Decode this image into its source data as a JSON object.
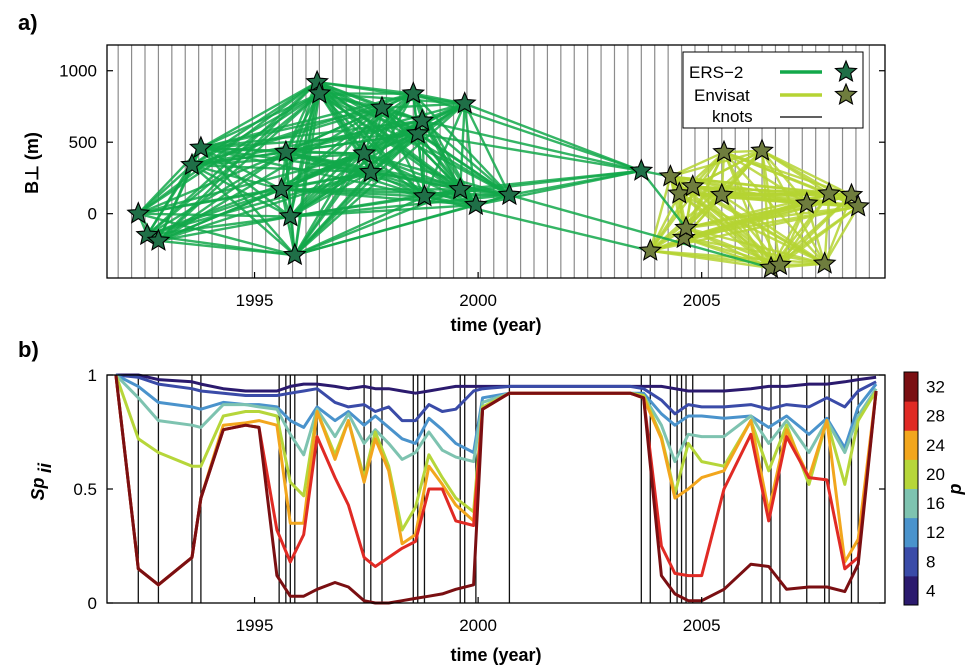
{
  "colors": {
    "ers2": "#12a84a",
    "envisat": "#b5d433",
    "star_ers2": "#1f6f47",
    "star_envisat": "#6f7d3e",
    "grid": "#8c8c8c"
  },
  "chart_data": [
    {
      "panel_label": "a)",
      "type": "scatter",
      "xlabel": "time (year)",
      "ylabel": "B⊥ (m)",
      "xlim": [
        1991.7,
        2009.1
      ],
      "ylim": [
        -450,
        1180
      ],
      "xticks": [
        1995,
        2000,
        2005
      ],
      "yticks": [
        0,
        500,
        1000
      ],
      "legend": {
        "position": "top-right",
        "entries": [
          "ERS−2",
          "Envisat",
          "knots"
        ]
      },
      "knots": [
        1991.95,
        1992.25,
        1992.55,
        1992.85,
        1993.15,
        1993.45,
        1993.75,
        1994.05,
        1994.35,
        1994.65,
        1994.95,
        1995.25,
        1995.55,
        1995.85,
        1996.15,
        1996.45,
        1996.75,
        1997.05,
        1997.35,
        1997.65,
        1997.95,
        1998.25,
        1998.55,
        1998.85,
        1999.15,
        1999.45,
        1999.75,
        2000.05,
        2000.35,
        2000.65,
        2000.95,
        2001.25,
        2001.55,
        2001.85,
        2002.15,
        2002.45,
        2002.75,
        2003.05,
        2003.35,
        2003.65,
        2003.95,
        2004.25,
        2004.55,
        2004.85,
        2005.15,
        2005.45,
        2005.75,
        2006.05,
        2006.35,
        2006.65,
        2006.95,
        2007.25,
        2007.55,
        2007.85,
        2008.15,
        2008.45,
        2008.75
      ],
      "series": [
        {
          "name": "ERS−2",
          "points": [
            [
              1992.4,
              0
            ],
            [
              1992.6,
              -150
            ],
            [
              1992.85,
              -190
            ],
            [
              1993.6,
              340
            ],
            [
              1993.8,
              460
            ],
            [
              1995.6,
              170
            ],
            [
              1995.7,
              430
            ],
            [
              1995.8,
              -20
            ],
            [
              1995.9,
              -290
            ],
            [
              1996.4,
              920
            ],
            [
              1996.45,
              840
            ],
            [
              1997.45,
              420
            ],
            [
              1997.6,
              290
            ],
            [
              1997.85,
              740
            ],
            [
              1998.55,
              840
            ],
            [
              1998.65,
              560
            ],
            [
              1998.75,
              650
            ],
            [
              1998.8,
              120
            ],
            [
              1999.6,
              170
            ],
            [
              1999.7,
              770
            ],
            [
              1999.95,
              60
            ],
            [
              2000.7,
              130
            ],
            [
              2003.65,
              300
            ]
          ]
        },
        {
          "name": "Envisat",
          "points": [
            [
              2003.85,
              -260
            ],
            [
              2004.3,
              260
            ],
            [
              2004.5,
              140
            ],
            [
              2004.6,
              -170
            ],
            [
              2004.65,
              -100
            ],
            [
              2004.8,
              190
            ],
            [
              2005.45,
              130
            ],
            [
              2005.5,
              430
            ],
            [
              2006.35,
              440
            ],
            [
              2006.55,
              -380
            ],
            [
              2006.75,
              -360
            ],
            [
              2007.35,
              70
            ],
            [
              2007.75,
              -350
            ],
            [
              2007.85,
              140
            ],
            [
              2008.35,
              130
            ],
            [
              2008.5,
              50
            ]
          ]
        }
      ]
    },
    {
      "panel_label": "b)",
      "type": "line",
      "xlabel": "time (year)",
      "ylabel": "Sp",
      "xlim": [
        1991.7,
        2009.1
      ],
      "ylim": [
        0,
        1
      ],
      "xticks": [
        1995,
        2000,
        2005
      ],
      "yticks": [
        0,
        0.5,
        1
      ],
      "ytick_labels": [
        "0",
        "0.5",
        "1"
      ],
      "colorbar": {
        "label": "p",
        "ticks": [
          4,
          8,
          12,
          16,
          20,
          24,
          28,
          32
        ],
        "colors": [
          "#2b1a6e",
          "#3a4ba8",
          "#4a93cc",
          "#7ec3b0",
          "#b6d63a",
          "#f2a61d",
          "#e02a24",
          "#7a0f12"
        ]
      },
      "knots": [
        1992.4,
        1992.85,
        1993.6,
        1993.8,
        1995.55,
        1995.7,
        1995.8,
        1995.9,
        1996.4,
        1997.45,
        1997.6,
        1997.85,
        1998.55,
        1998.65,
        1998.8,
        1999.6,
        1999.7,
        1999.95,
        2000.7,
        2003.65,
        2003.85,
        2004.3,
        2004.45,
        2004.55,
        2004.65,
        2004.8,
        2005.5,
        2006.35,
        2006.55,
        2006.75,
        2007.35,
        2007.75,
        2007.85,
        2008.35,
        2008.5
      ],
      "x": [
        1991.9,
        1992.4,
        1992.85,
        1993.6,
        1993.8,
        1994.3,
        1994.8,
        1995.1,
        1995.5,
        1995.8,
        1996.1,
        1996.4,
        1996.8,
        1997.1,
        1997.45,
        1997.7,
        1998.0,
        1998.3,
        1998.6,
        1998.9,
        1999.2,
        1999.5,
        1999.9,
        2000.1,
        2000.7,
        2001.2,
        2002.5,
        2003.4,
        2003.7,
        2004.1,
        2004.4,
        2004.7,
        2005.0,
        2005.5,
        2006.1,
        2006.5,
        2006.9,
        2007.4,
        2007.8,
        2008.2,
        2008.5,
        2008.9
      ],
      "series": [
        {
          "name": "4",
          "color": "#2b1a6e",
          "values": [
            1.0,
            1.0,
            0.98,
            0.97,
            0.96,
            0.94,
            0.93,
            0.93,
            0.93,
            0.95,
            0.96,
            0.96,
            0.95,
            0.94,
            0.95,
            0.94,
            0.94,
            0.93,
            0.92,
            0.93,
            0.94,
            0.95,
            0.95,
            0.95,
            0.95,
            0.95,
            0.95,
            0.95,
            0.95,
            0.95,
            0.94,
            0.93,
            0.93,
            0.93,
            0.94,
            0.95,
            0.95,
            0.96,
            0.96,
            0.97,
            0.98,
            0.99
          ]
        },
        {
          "name": "8",
          "color": "#3a4ba8",
          "values": [
            1.0,
            0.99,
            0.96,
            0.94,
            0.93,
            0.92,
            0.91,
            0.91,
            0.91,
            0.92,
            0.93,
            0.94,
            0.88,
            0.86,
            0.87,
            0.84,
            0.86,
            0.8,
            0.8,
            0.87,
            0.84,
            0.85,
            0.93,
            0.94,
            0.95,
            0.95,
            0.95,
            0.95,
            0.94,
            0.89,
            0.83,
            0.87,
            0.86,
            0.86,
            0.87,
            0.85,
            0.87,
            0.86,
            0.9,
            0.86,
            0.93,
            0.97
          ]
        },
        {
          "name": "12",
          "color": "#4a93cc",
          "values": [
            1.0,
            0.95,
            0.88,
            0.86,
            0.85,
            0.88,
            0.87,
            0.87,
            0.86,
            0.8,
            0.77,
            0.86,
            0.8,
            0.84,
            0.78,
            0.82,
            0.77,
            0.72,
            0.7,
            0.81,
            0.76,
            0.7,
            0.66,
            0.9,
            0.92,
            0.92,
            0.92,
            0.92,
            0.92,
            0.83,
            0.78,
            0.82,
            0.82,
            0.81,
            0.82,
            0.77,
            0.82,
            0.74,
            0.81,
            0.68,
            0.86,
            0.96
          ]
        },
        {
          "name": "16",
          "color": "#7ec3b0",
          "values": [
            1.0,
            0.9,
            0.8,
            0.78,
            0.77,
            0.87,
            0.87,
            0.86,
            0.85,
            0.74,
            0.65,
            0.85,
            0.73,
            0.83,
            0.7,
            0.76,
            0.7,
            0.63,
            0.66,
            0.75,
            0.67,
            0.64,
            0.62,
            0.88,
            0.92,
            0.92,
            0.92,
            0.92,
            0.91,
            0.78,
            0.62,
            0.74,
            0.73,
            0.73,
            0.82,
            0.7,
            0.8,
            0.66,
            0.8,
            0.66,
            0.82,
            0.94
          ]
        },
        {
          "name": "20",
          "color": "#b6d63a",
          "values": [
            1.0,
            0.72,
            0.66,
            0.6,
            0.6,
            0.82,
            0.84,
            0.84,
            0.82,
            0.53,
            0.47,
            0.84,
            0.65,
            0.8,
            0.55,
            0.75,
            0.6,
            0.32,
            0.42,
            0.65,
            0.55,
            0.46,
            0.4,
            0.86,
            0.92,
            0.92,
            0.92,
            0.92,
            0.91,
            0.73,
            0.48,
            0.7,
            0.62,
            0.6,
            0.8,
            0.58,
            0.78,
            0.52,
            0.8,
            0.52,
            0.8,
            0.93
          ]
        },
        {
          "name": "24",
          "color": "#f2a61d",
          "values": [
            1.0,
            0.15,
            0.08,
            0.2,
            0.46,
            0.78,
            0.79,
            0.8,
            0.78,
            0.35,
            0.35,
            0.84,
            0.63,
            0.8,
            0.53,
            0.72,
            0.58,
            0.26,
            0.3,
            0.6,
            0.52,
            0.43,
            0.36,
            0.85,
            0.92,
            0.92,
            0.92,
            0.92,
            0.9,
            0.72,
            0.46,
            0.5,
            0.55,
            0.58,
            0.8,
            0.4,
            0.76,
            0.55,
            0.8,
            0.18,
            0.28,
            0.93
          ]
        },
        {
          "name": "28",
          "color": "#e02a24",
          "values": [
            1.0,
            0.15,
            0.08,
            0.2,
            0.46,
            0.76,
            0.78,
            0.77,
            0.32,
            0.18,
            0.3,
            0.73,
            0.55,
            0.43,
            0.2,
            0.16,
            0.2,
            0.24,
            0.27,
            0.5,
            0.5,
            0.36,
            0.34,
            0.85,
            0.92,
            0.92,
            0.92,
            0.92,
            0.9,
            0.25,
            0.13,
            0.12,
            0.12,
            0.5,
            0.74,
            0.36,
            0.73,
            0.55,
            0.54,
            0.15,
            0.2,
            0.93
          ]
        },
        {
          "name": "32",
          "color": "#7a0f12",
          "values": [
            1.0,
            0.15,
            0.08,
            0.2,
            0.46,
            0.76,
            0.78,
            0.77,
            0.12,
            0.03,
            0.03,
            0.06,
            0.09,
            0.07,
            0.01,
            0.0,
            0.0,
            0.01,
            0.02,
            0.03,
            0.04,
            0.06,
            0.08,
            0.85,
            0.92,
            0.92,
            0.92,
            0.92,
            0.9,
            0.12,
            0.04,
            0.01,
            0.01,
            0.06,
            0.17,
            0.16,
            0.06,
            0.07,
            0.07,
            0.05,
            0.17,
            0.93
          ]
        }
      ]
    }
  ]
}
